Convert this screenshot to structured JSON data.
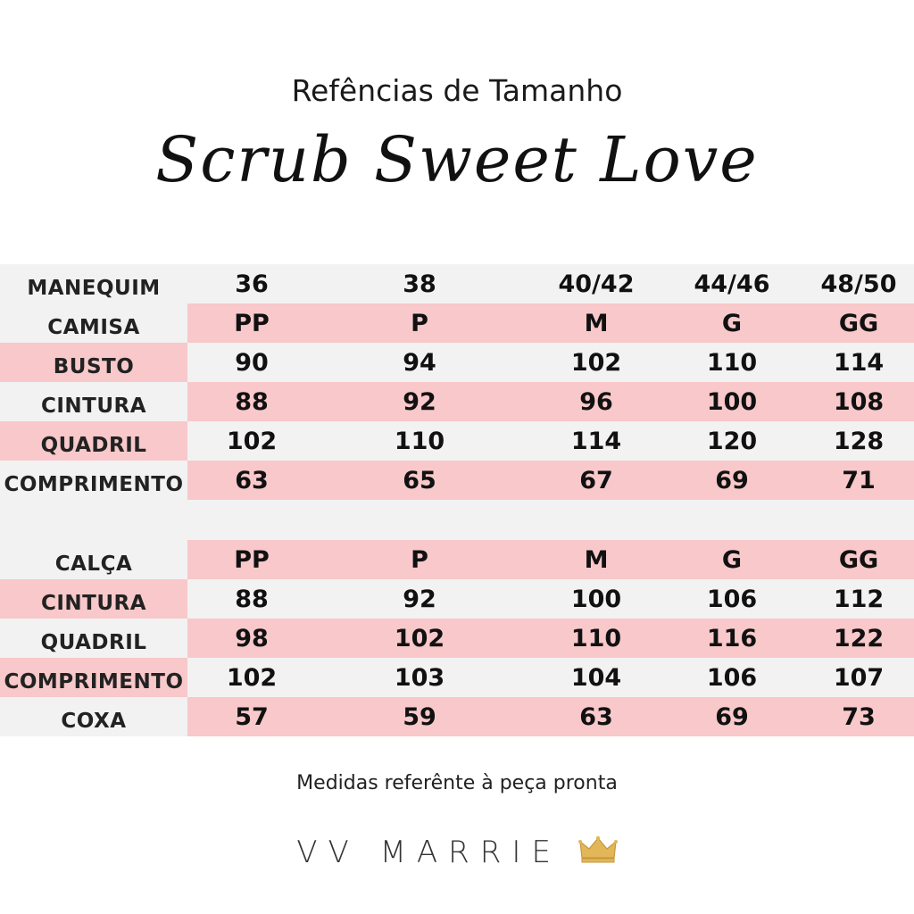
{
  "header": {
    "subtitle": "Refências de Tamanho",
    "title": "Scrub Sweet Love"
  },
  "top_table": {
    "rows": [
      {
        "label": "MANEQUIM",
        "values": [
          "36",
          "38",
          "40/42",
          "44/46",
          "48/50"
        ]
      },
      {
        "label": "CAMISA",
        "values": [
          "PP",
          "P",
          "M",
          "G",
          "GG"
        ]
      },
      {
        "label": "BUSTO",
        "values": [
          "90",
          "94",
          "102",
          "110",
          "114"
        ]
      },
      {
        "label": "CINTURA",
        "values": [
          "88",
          "92",
          "96",
          "100",
          "108"
        ]
      },
      {
        "label": "QUADRIL",
        "values": [
          "102",
          "110",
          "114",
          "120",
          "128"
        ]
      },
      {
        "label": "COMPRIMENTO",
        "values": [
          "63",
          "65",
          "67",
          "69",
          "71"
        ]
      }
    ]
  },
  "bottom_table": {
    "rows": [
      {
        "label": "CALÇA",
        "values": [
          "PP",
          "P",
          "M",
          "G",
          "GG"
        ]
      },
      {
        "label": "CINTURA",
        "values": [
          "88",
          "92",
          "100",
          "106",
          "112"
        ]
      },
      {
        "label": "QUADRIL",
        "values": [
          "98",
          "102",
          "110",
          "116",
          "122"
        ]
      },
      {
        "label": "COMPRIMENTO",
        "values": [
          "102",
          "103",
          "104",
          "106",
          "107"
        ]
      },
      {
        "label": "COXA",
        "values": [
          "57",
          "59",
          "63",
          "69",
          "73"
        ]
      }
    ]
  },
  "footer": {
    "note": "Medidas referênte à peça pronta",
    "brand": "VV MARRIE"
  },
  "colors": {
    "pink": "#f8c8ca",
    "grey": "#f2f2f2",
    "crown": "#e2b75a"
  }
}
